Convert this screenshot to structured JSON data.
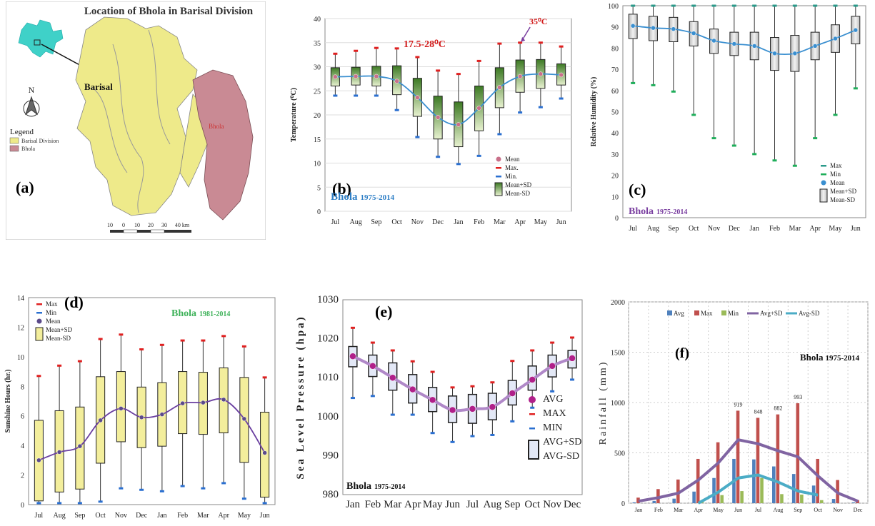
{
  "panel_a": {
    "letter": "(a)",
    "title": "Location of Bhola in Barisal Division",
    "north": "N",
    "legend_title": "Legend",
    "legend_items": [
      {
        "label": "Barisal Division",
        "color": "#eeea8a"
      },
      {
        "label": "Bhola",
        "color": "#c98a94"
      }
    ],
    "place_barisal": "Barisal",
    "place_bhola": "Bhola",
    "scale_labels": [
      "10",
      "0",
      "10",
      "20",
      "30",
      "40 km"
    ],
    "colors": {
      "land": "#eeea8a",
      "bhola": "#c98a94",
      "inset": "#3fd1c8"
    }
  },
  "chart_data": [
    {
      "id": "b",
      "type": "box",
      "letter": "(b)",
      "station": "Bhola",
      "period": "1975-2014",
      "ylabel": "Temperature (⁰C)",
      "ylim": [
        0,
        40
      ],
      "yticks": [
        0,
        5,
        10,
        15,
        20,
        25,
        30,
        35,
        40
      ],
      "categories": [
        "Jul",
        "Aug",
        "Sep",
        "Oct",
        "Nov",
        "Dec",
        "Jan",
        "Feb",
        "Mar",
        "Apr",
        "May",
        "Jun"
      ],
      "mean": [
        27.9,
        28.0,
        28.0,
        27.0,
        23.6,
        19.5,
        18.0,
        21.4,
        25.7,
        28.0,
        28.5,
        28.3
      ],
      "max": [
        32.7,
        33.3,
        33.9,
        33.8,
        32.0,
        29.2,
        28.5,
        31.2,
        34.8,
        35.0,
        35.0,
        34.2
      ],
      "min": [
        24.0,
        24.0,
        24.0,
        21.0,
        15.4,
        11.3,
        9.8,
        11.5,
        16.0,
        20.5,
        21.6,
        23.4
      ],
      "sd_upper": [
        29.8,
        29.9,
        30.1,
        30.2,
        27.6,
        23.9,
        22.7,
        26.0,
        29.8,
        31.4,
        31.5,
        30.6
      ],
      "sd_lower": [
        26.0,
        26.2,
        26.0,
        24.2,
        19.7,
        15.0,
        13.4,
        16.7,
        21.5,
        24.7,
        25.5,
        26.2
      ],
      "annotations": [
        "17.5-28⁰C",
        "35⁰C"
      ],
      "legend": [
        "Mean",
        "Max.",
        "Min.",
        "Mean+SD",
        "Mean-SD"
      ],
      "grid": "horizontal"
    },
    {
      "id": "c",
      "type": "box",
      "letter": "(c)",
      "station": "Bhola",
      "period": "1975-2014",
      "ylabel": "Relative Humidity (%)",
      "ylim": [
        0,
        100
      ],
      "yticks": [
        0,
        10,
        20,
        30,
        40,
        50,
        60,
        70,
        80,
        90,
        100
      ],
      "categories": [
        "Jul",
        "Aug",
        "Sep",
        "Oct",
        "Nov",
        "Dec",
        "Jan",
        "Feb",
        "Mar",
        "Apr",
        "May",
        "Jun"
      ],
      "mean": [
        90.5,
        89.5,
        89.0,
        87.0,
        83.5,
        82.0,
        81.0,
        77.5,
        77.5,
        81.0,
        84.5,
        88.5
      ],
      "max": [
        100,
        100,
        100,
        100,
        100,
        100,
        100,
        100,
        100,
        100,
        100,
        100
      ],
      "min": [
        63.5,
        62.5,
        59.5,
        48.5,
        37.5,
        34.0,
        30.0,
        27.0,
        24.5,
        37.5,
        48.5,
        61.0
      ],
      "sd_upper": [
        96.0,
        95.0,
        94.5,
        92.5,
        89.0,
        87.5,
        87.5,
        85.0,
        86.0,
        87.5,
        91.0,
        95.0
      ],
      "sd_lower": [
        84.5,
        83.5,
        83.0,
        81.0,
        77.5,
        76.5,
        74.5,
        69.5,
        69.0,
        74.5,
        78.0,
        82.0
      ],
      "legend": [
        "Max",
        "Min",
        "Mean",
        "Mean+SD",
        "Mean-SD"
      ],
      "grid": "none"
    },
    {
      "id": "d",
      "type": "box",
      "letter": "(d)",
      "station": "Bhola",
      "period": "1981-2014",
      "ylabel": "Sunshine Hours (hr.)",
      "ylim": [
        0,
        14
      ],
      "yticks": [
        0,
        2,
        4,
        6,
        8,
        10,
        12,
        14
      ],
      "categories": [
        "Jul",
        "Aug",
        "Sep",
        "Oct",
        "Nov",
        "Dec",
        "Jan",
        "Feb",
        "Mar",
        "Apr",
        "May",
        "Jun"
      ],
      "mean": [
        3.0,
        3.55,
        3.95,
        5.7,
        6.5,
        5.9,
        6.1,
        6.85,
        6.9,
        7.1,
        5.8,
        3.5
      ],
      "max": [
        8.7,
        9.4,
        9.7,
        11.2,
        11.5,
        10.5,
        10.8,
        11.1,
        11.1,
        11.4,
        10.7,
        8.6
      ],
      "min": [
        0.1,
        0.1,
        0.1,
        0.2,
        1.1,
        1.0,
        0.9,
        1.25,
        1.1,
        1.45,
        0.4,
        0.1
      ],
      "sd_upper": [
        5.7,
        6.35,
        6.6,
        8.65,
        9.0,
        7.95,
        8.25,
        9.0,
        8.95,
        9.25,
        8.6,
        6.25
      ],
      "sd_lower": [
        0.25,
        0.85,
        1.05,
        2.8,
        4.25,
        3.85,
        3.95,
        4.8,
        4.75,
        4.85,
        2.85,
        0.5
      ],
      "legend": [
        "Max",
        "Min",
        "Mean",
        "Mean+SD",
        "Mean-SD"
      ],
      "grid": "none"
    },
    {
      "id": "e",
      "type": "box",
      "letter": "(e)",
      "station": "Bhola",
      "period": "1975-2014",
      "ylabel": "Sea Level Pressure (hpa)",
      "ylim": [
        980,
        1030
      ],
      "yticks": [
        980,
        990,
        1000,
        1010,
        1020,
        1030
      ],
      "categories": [
        "Jan",
        "Feb",
        "Mar",
        "Apr",
        "May",
        "Jun",
        "Jul",
        "Aug",
        "Sep",
        "Oct",
        "Nov",
        "Dec"
      ],
      "mean": [
        1015.5,
        1013.0,
        1010.0,
        1007.0,
        1004.3,
        1001.7,
        1002.0,
        1002.5,
        1006.0,
        1009.5,
        1013.0,
        1015.0
      ],
      "max": [
        1022.8,
        1019.0,
        1017.0,
        1014.2,
        1011.5,
        1007.5,
        1007.8,
        1008.8,
        1014.3,
        1017.0,
        1019.0,
        1020.3
      ],
      "min": [
        1004.8,
        1005.3,
        1000.5,
        1000.5,
        995.8,
        993.5,
        995.0,
        995.3,
        998.8,
        1002.3,
        1006.5,
        1009.5
      ],
      "sd_upper": [
        1018.0,
        1015.8,
        1013.8,
        1010.8,
        1007.5,
        1005.3,
        1005.7,
        1006.0,
        1009.3,
        1013.0,
        1015.8,
        1017.0
      ],
      "sd_lower": [
        1012.8,
        1010.3,
        1006.8,
        1003.5,
        1001.3,
        998.5,
        998.3,
        999.2,
        1003.0,
        1006.8,
        1010.2,
        1012.5
      ],
      "legend": [
        "AVG",
        "MAX",
        "MIN",
        "AVG+SD",
        "AVG-SD"
      ],
      "grid": "none"
    },
    {
      "id": "f",
      "type": "bar",
      "letter": "(f)",
      "station": "Bhola",
      "period": "1975-2014",
      "ylabel": "Rainfall (mm)",
      "ylim": [
        0,
        2000
      ],
      "yticks": [
        0,
        500,
        1000,
        1500,
        2000
      ],
      "categories": [
        "Jan",
        "Feb",
        "Mar",
        "Apr",
        "May",
        "Jun",
        "Jul",
        "Aug",
        "Sep",
        "Oct",
        "Nov",
        "Dec"
      ],
      "series": [
        {
          "name": "Avg",
          "values": [
            8,
            22,
            45,
            115,
            250,
            440,
            435,
            365,
            290,
            175,
            42,
            8
          ],
          "color": "#4f81bd"
        },
        {
          "name": "Max",
          "values": [
            55,
            140,
            235,
            440,
            605,
            919,
            848,
            882,
            993,
            440,
            230,
            30
          ],
          "color": "#c0504d"
        },
        {
          "name": "Min",
          "values": [
            0,
            0,
            0,
            20,
            80,
            120,
            250,
            90,
            85,
            30,
            0,
            0
          ],
          "color": "#9bbb59"
        }
      ],
      "lines": [
        {
          "name": "Avg+SD",
          "values": [
            20,
            55,
            100,
            230,
            400,
            630,
            590,
            520,
            460,
            270,
            100,
            20
          ],
          "color": "#8064a2"
        },
        {
          "name": "Avg-SD",
          "values": [
            null,
            null,
            null,
            0,
            110,
            250,
            280,
            210,
            120,
            80,
            null,
            null
          ],
          "color": "#4bacc6"
        }
      ],
      "data_labels": [
        {
          "category": "Jun",
          "value": "919"
        },
        {
          "category": "Jul",
          "value": "848"
        },
        {
          "category": "Aug",
          "value": "882"
        },
        {
          "category": "Sep",
          "value": "993"
        }
      ],
      "legend": [
        "Avg",
        "Max",
        "Min",
        "Avg+SD",
        "Avg-SD"
      ],
      "grid": "dotted"
    }
  ]
}
